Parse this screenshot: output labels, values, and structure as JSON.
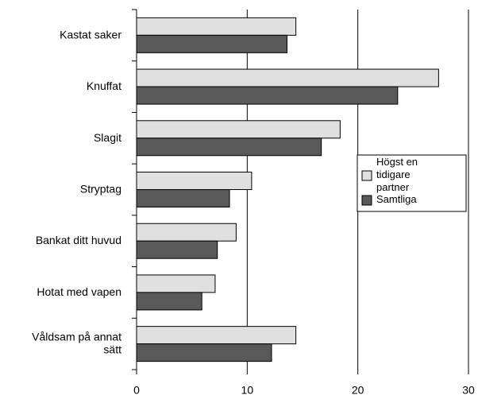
{
  "chart_data": {
    "type": "barh",
    "categories": [
      "Kastat saker",
      "Knuffat",
      "Slagit",
      "Stryptag",
      "Bankat ditt huvud",
      "Hotat med vapen",
      "Våldsam på annat sätt"
    ],
    "series": [
      {
        "name": "Högst en tidigare partner",
        "color": "#e0e0e0",
        "values": [
          14.4,
          27.3,
          18.4,
          10.4,
          9.0,
          7.1,
          14.4
        ]
      },
      {
        "name": "Samtliga",
        "color": "#595959",
        "values": [
          13.6,
          23.6,
          16.7,
          8.4,
          7.3,
          5.9,
          12.2
        ]
      }
    ],
    "xlim": [
      0,
      30
    ],
    "xticks": [
      0,
      10,
      20,
      30
    ],
    "grid": true,
    "legend": "right"
  }
}
